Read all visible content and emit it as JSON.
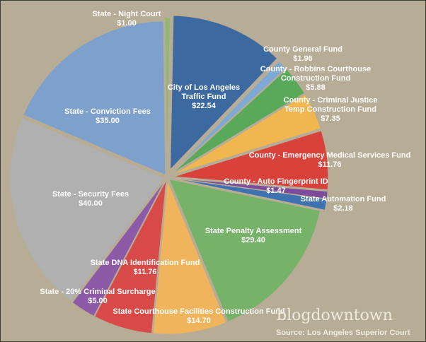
{
  "chart_data": {
    "type": "pie",
    "title": "",
    "slices": [
      {
        "label": "City of Los Angeles Traffic Fund",
        "value": 22.54,
        "value_text": "$22.54",
        "color": "#3c6aa0"
      },
      {
        "label": "County General Fund",
        "value": 1.96,
        "value_text": "$1.96",
        "color": "#9aae7c"
      },
      {
        "label": "County - Robbins Courthouse Construction Fund",
        "value": 5.88,
        "value_text": "$5.88",
        "color": "#56a554"
      },
      {
        "label": "County - Criminal Justice Temp Construction Fund",
        "value": 7.35,
        "value_text": "$7.35",
        "color": "#f0b650"
      },
      {
        "label": "County - Emergency Medical Services Fund",
        "value": 11.76,
        "value_text": "$11.76",
        "color": "#d9423a"
      },
      {
        "label": "County - Auto Fingerprint ID",
        "value": 1.47,
        "value_text": "$1.47",
        "color": "#7d4a9c"
      },
      {
        "label": "State Automation Fund",
        "value": 2.18,
        "value_text": "$2.18",
        "color": "#a9a9a9"
      },
      {
        "label": "State Penalty Assessment",
        "value": 29.4,
        "value_text": "$29.40",
        "color": "#3e73b4"
      },
      {
        "label": "State Courthouse Facilities Construction Fund",
        "value": 14.7,
        "value_text": "$14.70",
        "color": "#78ad5e"
      },
      {
        "label": "State DNA Identification Fund",
        "value": 11.76,
        "value_text": "$11.76",
        "color": "#efb45c"
      },
      {
        "label": "State - 20% Criminal Surcharge",
        "value": 5.0,
        "value_text": "$5.00",
        "color": "#d74a48"
      },
      {
        "label": "State - Security Fees",
        "value": 40.0,
        "value_text": "$40.00",
        "color": "#8a5aa4"
      },
      {
        "label": "State - Conviction Fees",
        "value": 35.0,
        "value_text": "$35.00",
        "color": "#b0b0b0"
      },
      {
        "label": "State - Night Court",
        "value": 1.0,
        "value_text": "$1.00",
        "color": "#7d9fcb"
      }
    ]
  },
  "watermark": "blogdowntown",
  "source": "Source: Los Angeles Superior Court"
}
